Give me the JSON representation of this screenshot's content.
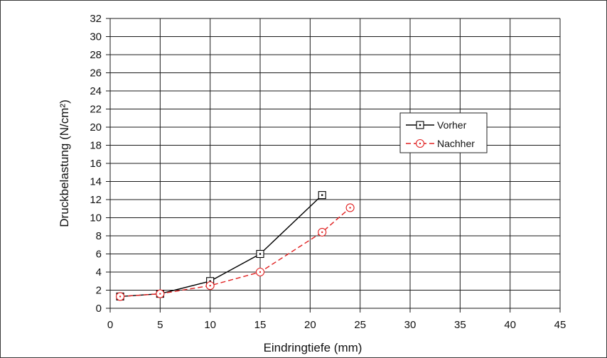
{
  "chart_data": {
    "type": "line",
    "title": "",
    "xlabel": "Eindringtiefe (mm)",
    "ylabel": "Druckbelastung (N/cm²)",
    "xlim": [
      0,
      45
    ],
    "ylim": [
      0,
      32
    ],
    "x_ticks": [
      0,
      5,
      10,
      15,
      20,
      25,
      30,
      35,
      40,
      45
    ],
    "y_ticks": [
      0,
      2,
      4,
      6,
      8,
      10,
      12,
      14,
      16,
      18,
      20,
      22,
      24,
      26,
      28,
      30,
      32
    ],
    "grid": true,
    "legend_position": "right-middle",
    "series": [
      {
        "name": "Vorher",
        "color": "#000000",
        "line_style": "solid",
        "marker": "square",
        "x": [
          1,
          5,
          10,
          15,
          21.2
        ],
        "y": [
          1.3,
          1.6,
          3.0,
          6.0,
          12.5
        ]
      },
      {
        "name": "Nachher",
        "color": "#e02020",
        "line_style": "dashed",
        "marker": "circle",
        "x": [
          1,
          5,
          10,
          15,
          21.2,
          24
        ],
        "y": [
          1.3,
          1.6,
          2.5,
          4.0,
          8.4,
          11.1
        ]
      }
    ]
  }
}
